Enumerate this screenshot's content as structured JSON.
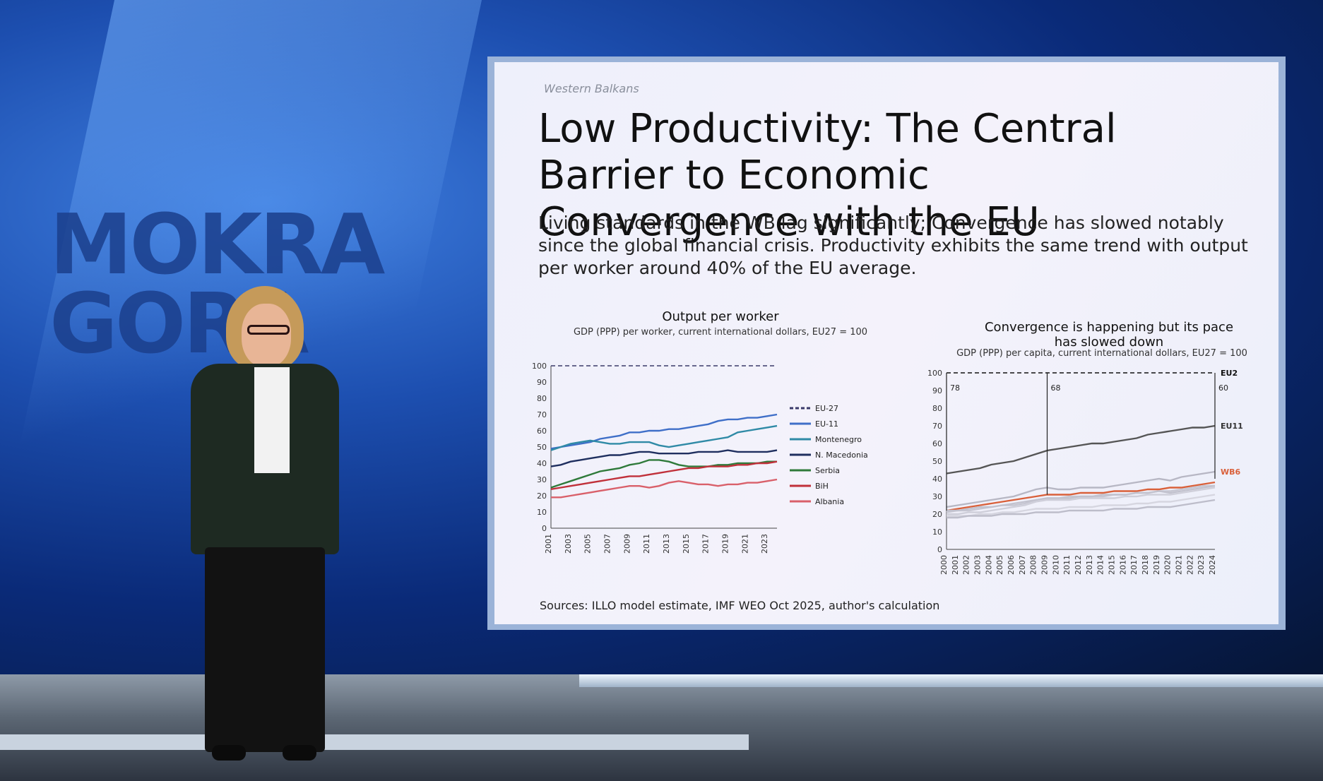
{
  "venue_logo": {
    "line1": "MOKRA",
    "line2": "GORA"
  },
  "slide": {
    "kicker": "Western Balkans",
    "title": "Low Productivity: The Central Barrier to Economic Convergence with the EU",
    "subtitle": "Living standards in the WB lag significantly; Convergence has slowed notably since the global financial crisis. Productivity exhibits the same trend with output per worker around 40% of the EU average.",
    "sources": "Sources: ILLO model estimate, IMF WEO Oct 2025, author's calculation"
  },
  "chart_data": [
    {
      "type": "line",
      "title": "Output per worker",
      "subtitle": "GDP (PPP) per worker, current international dollars, EU27 = 100",
      "x": [
        2001,
        2002,
        2003,
        2004,
        2005,
        2006,
        2007,
        2008,
        2009,
        2010,
        2011,
        2012,
        2013,
        2014,
        2015,
        2016,
        2017,
        2018,
        2019,
        2020,
        2021,
        2022,
        2023,
        2024
      ],
      "x_tick_labels": [
        "2001",
        "2003",
        "2005",
        "2007",
        "2009",
        "2011",
        "2013",
        "2015",
        "2017",
        "2019",
        "2021",
        "2023"
      ],
      "ylim": [
        0,
        100
      ],
      "y_ticks": [
        0,
        10,
        20,
        30,
        40,
        50,
        60,
        70,
        80,
        90,
        100
      ],
      "legend_position": "right",
      "series": [
        {
          "name": "EU-27",
          "color": "#3a3a6a",
          "dashed": true,
          "values": [
            100,
            100,
            100,
            100,
            100,
            100,
            100,
            100,
            100,
            100,
            100,
            100,
            100,
            100,
            100,
            100,
            100,
            100,
            100,
            100,
            100,
            100,
            100,
            100
          ]
        },
        {
          "name": "EU-11",
          "color": "#3f6fc8",
          "values": [
            49,
            50,
            51,
            52,
            53,
            55,
            56,
            57,
            59,
            59,
            60,
            60,
            61,
            61,
            62,
            63,
            64,
            66,
            67,
            67,
            68,
            68,
            69,
            70
          ]
        },
        {
          "name": "Montenegro",
          "color": "#2f8aa6",
          "values": [
            48,
            50,
            52,
            53,
            54,
            53,
            52,
            52,
            53,
            53,
            53,
            51,
            50,
            51,
            52,
            53,
            54,
            55,
            56,
            59,
            60,
            61,
            62,
            63
          ]
        },
        {
          "name": "N. Macedonia",
          "color": "#1f2f5f",
          "values": [
            38,
            39,
            41,
            42,
            43,
            44,
            45,
            45,
            46,
            47,
            47,
            46,
            46,
            46,
            46,
            47,
            47,
            47,
            48,
            47,
            47,
            47,
            47,
            48
          ]
        },
        {
          "name": "Serbia",
          "color": "#2f7a3a",
          "values": [
            25,
            27,
            29,
            31,
            33,
            35,
            36,
            37,
            39,
            40,
            42,
            42,
            41,
            39,
            38,
            38,
            38,
            39,
            39,
            40,
            40,
            40,
            41,
            41
          ]
        },
        {
          "name": "BiH",
          "color": "#c0303a",
          "values": [
            24,
            25,
            26,
            27,
            28,
            29,
            30,
            31,
            32,
            32,
            33,
            34,
            35,
            36,
            37,
            37,
            38,
            38,
            38,
            39,
            39,
            40,
            40,
            41
          ]
        },
        {
          "name": "Albania",
          "color": "#d9606a",
          "values": [
            19,
            19,
            20,
            21,
            22,
            23,
            24,
            25,
            26,
            26,
            25,
            26,
            28,
            29,
            28,
            27,
            27,
            26,
            27,
            27,
            28,
            28,
            29,
            30
          ]
        }
      ]
    },
    {
      "type": "line",
      "title": "Convergence is happening but its pace has slowed down",
      "subtitle": "GDP (PPP) per capita, current international dollars, EU27 = 100",
      "x": [
        2000,
        2001,
        2002,
        2003,
        2004,
        2005,
        2006,
        2007,
        2008,
        2009,
        2010,
        2011,
        2012,
        2013,
        2014,
        2015,
        2016,
        2017,
        2018,
        2019,
        2020,
        2021,
        2022,
        2023,
        2024
      ],
      "x_tick_labels": [
        "2000",
        "2001",
        "2002",
        "2003",
        "2004",
        "2005",
        "2006",
        "2007",
        "2008",
        "2009",
        "2010",
        "2011",
        "2012",
        "2013",
        "2014",
        "2015",
        "2016",
        "2017",
        "2018",
        "2019",
        "2020",
        "2021",
        "2022",
        "2023",
        "2024"
      ],
      "ylim": [
        0,
        100
      ],
      "y_ticks": [
        0,
        10,
        20,
        30,
        40,
        50,
        60,
        70,
        80,
        90,
        100
      ],
      "annotations": [
        {
          "label": "78",
          "year": 2000
        },
        {
          "label": "68",
          "year": 2009
        },
        {
          "label": "60",
          "year": 2024
        }
      ],
      "series_labels": [
        {
          "name": "EU2",
          "color": "#111111"
        },
        {
          "name": "EU11",
          "color": "#333333"
        },
        {
          "name": "WB6",
          "color": "#d9603a"
        }
      ],
      "series": [
        {
          "name": "EU2",
          "color": "#111111",
          "dashed": true,
          "values": [
            100,
            100,
            100,
            100,
            100,
            100,
            100,
            100,
            100,
            100,
            100,
            100,
            100,
            100,
            100,
            100,
            100,
            100,
            100,
            100,
            100,
            100,
            100,
            100,
            100
          ]
        },
        {
          "name": "EU11",
          "color": "#555555",
          "values": [
            43,
            44,
            45,
            46,
            48,
            49,
            50,
            52,
            54,
            56,
            57,
            58,
            59,
            60,
            60,
            61,
            62,
            63,
            65,
            66,
            67,
            68,
            69,
            69,
            70
          ]
        },
        {
          "name": "WB6",
          "color": "#d9603a",
          "values": [
            22,
            23,
            24,
            25,
            26,
            27,
            28,
            29,
            30,
            31,
            31,
            31,
            32,
            32,
            32,
            33,
            33,
            33,
            34,
            34,
            35,
            35,
            36,
            37,
            38
          ]
        },
        {
          "color": "#b7b7c4",
          "values": [
            24,
            25,
            26,
            27,
            28,
            29,
            30,
            32,
            34,
            35,
            34,
            34,
            35,
            35,
            35,
            36,
            37,
            38,
            39,
            40,
            39,
            41,
            42,
            43,
            44
          ]
        },
        {
          "color": "#c6c6d2",
          "values": [
            21,
            22,
            22,
            23,
            24,
            25,
            25,
            26,
            28,
            29,
            29,
            30,
            30,
            30,
            30,
            31,
            31,
            32,
            32,
            33,
            33,
            34,
            35,
            36,
            36
          ]
        },
        {
          "color": "#cfcfda",
          "values": [
            20,
            20,
            21,
            21,
            22,
            23,
            24,
            25,
            27,
            28,
            28,
            28,
            29,
            29,
            29,
            29,
            30,
            30,
            31,
            31,
            31,
            32,
            33,
            34,
            35
          ]
        },
        {
          "color": "#d6d6e0",
          "values": [
            19,
            19,
            19,
            20,
            20,
            21,
            21,
            22,
            23,
            23,
            23,
            24,
            24,
            24,
            25,
            25,
            25,
            26,
            26,
            27,
            27,
            28,
            29,
            30,
            31
          ]
        },
        {
          "color": "#bdbdca",
          "values": [
            18,
            18,
            19,
            19,
            19,
            20,
            20,
            20,
            21,
            21,
            21,
            22,
            22,
            22,
            22,
            23,
            23,
            23,
            24,
            24,
            24,
            25,
            26,
            27,
            28
          ]
        },
        {
          "color": "#c2c2ce",
          "values": [
            22,
            22,
            23,
            24,
            24,
            25,
            26,
            27,
            28,
            29,
            29,
            29,
            30,
            30,
            31,
            31,
            31,
            32,
            32,
            33,
            32,
            33,
            34,
            35,
            36
          ]
        }
      ]
    }
  ]
}
